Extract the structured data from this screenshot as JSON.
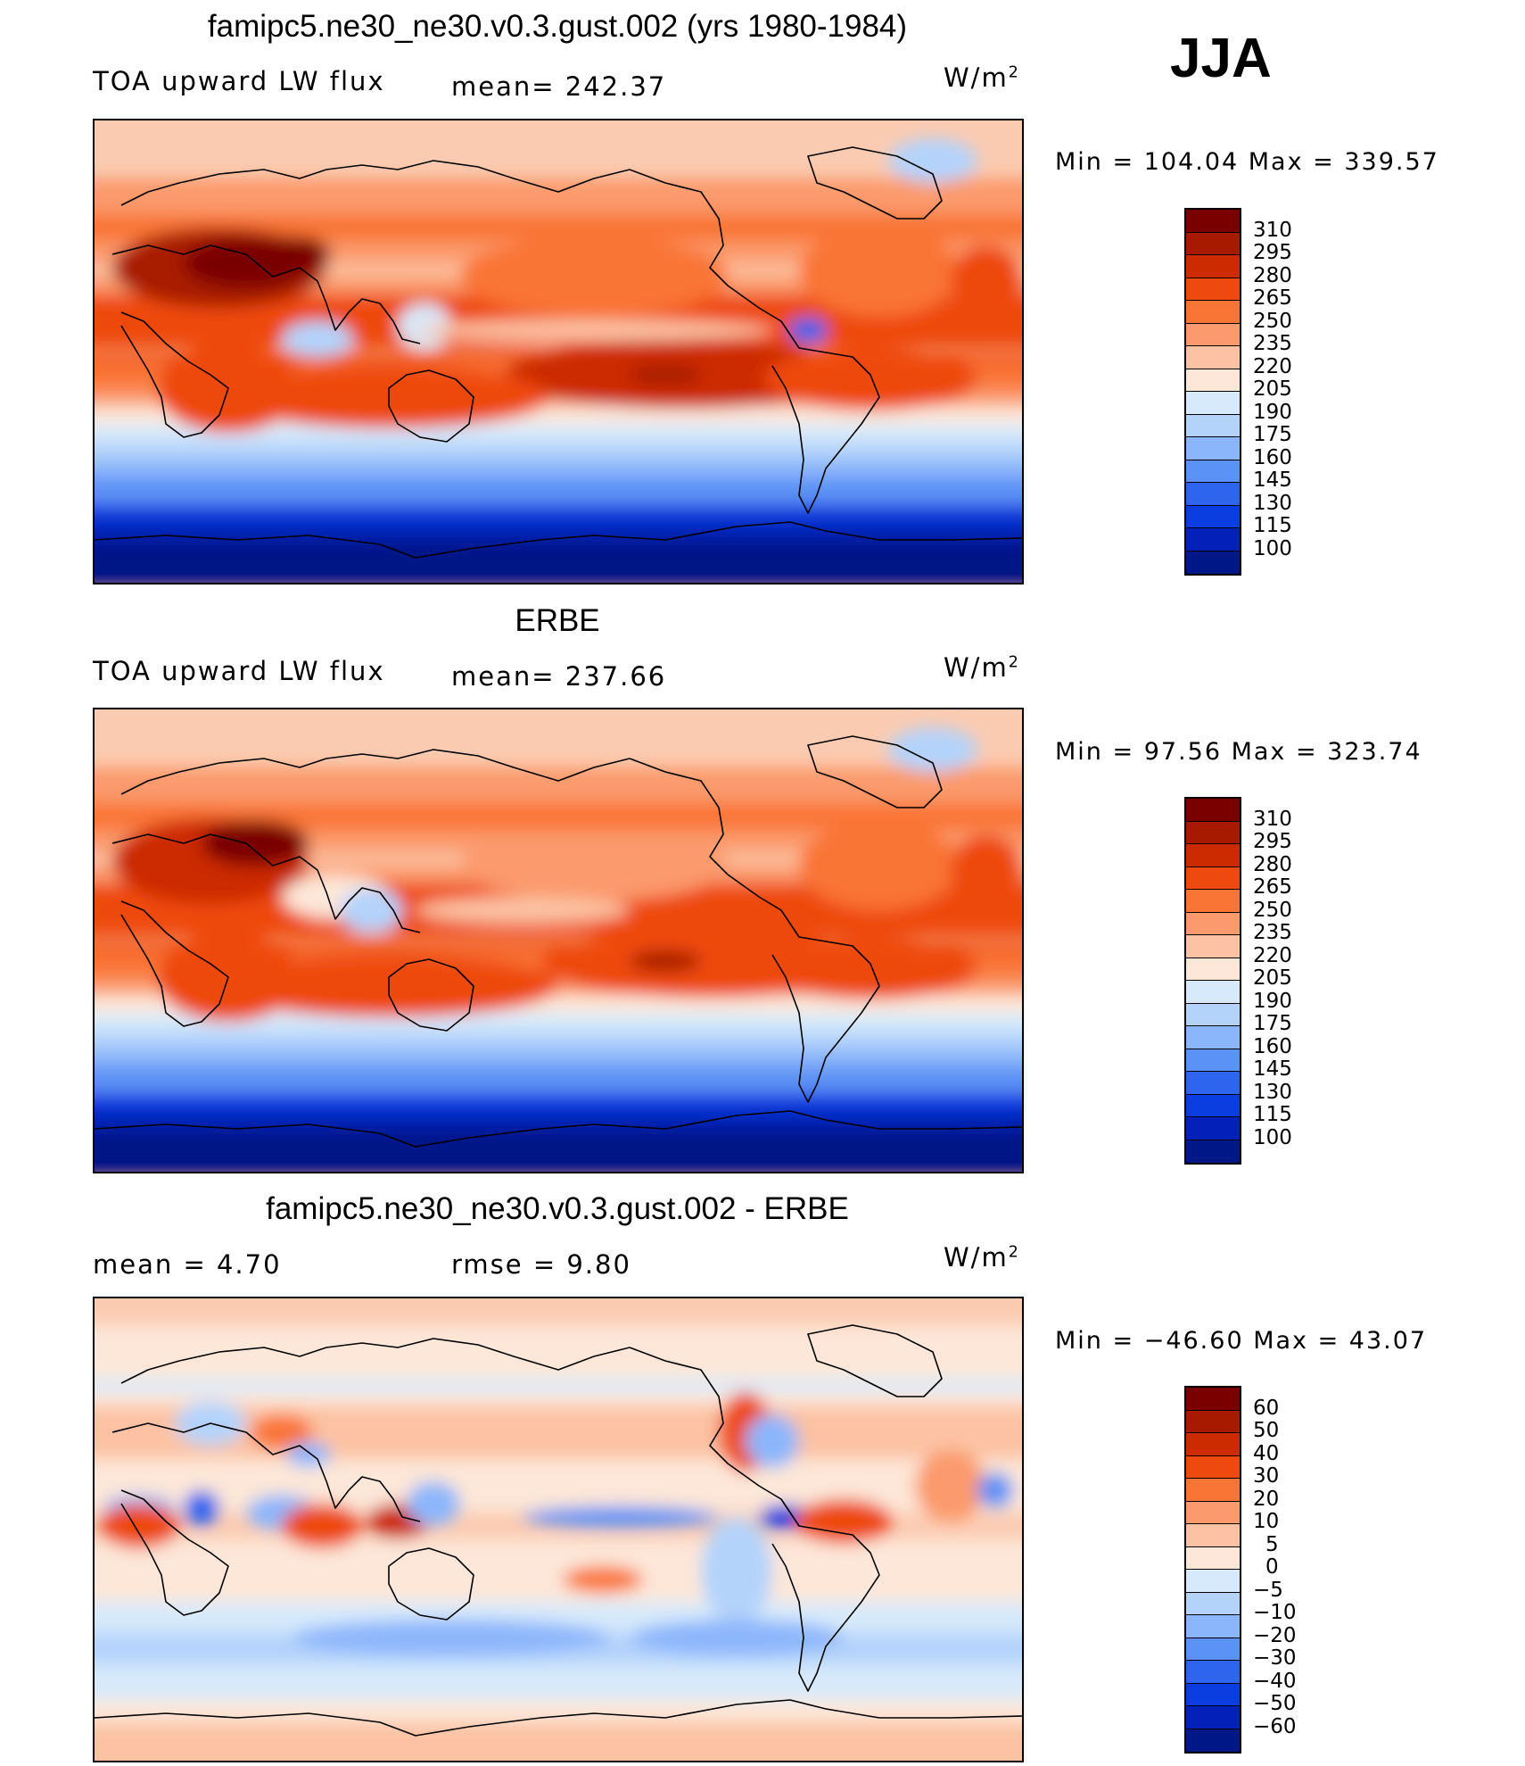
{
  "season": "JJA",
  "panels": [
    {
      "title": "famipc5.ne30_ne30.v0.3.gust.002 (yrs 1980-1984)",
      "left": "TOA upward LW flux",
      "middle": "mean= 242.37",
      "units": "W/m",
      "units_sup": "2",
      "minmax": "Min = 104.04 Max = 339.57",
      "scale": "abs",
      "pattern": "model"
    },
    {
      "title": "ERBE",
      "left": "TOA upward LW flux",
      "middle": "mean= 237.66",
      "units": "W/m",
      "units_sup": "2",
      "minmax": "Min = 97.56 Max = 323.74",
      "scale": "abs",
      "pattern": "obs"
    },
    {
      "title": "famipc5.ne30_ne30.v0.3.gust.002 - ERBE",
      "left": "mean = 4.70",
      "middle": "rmse = 9.80",
      "units": "W/m",
      "units_sup": "2",
      "minmax": "Min = −46.60 Max = 43.07",
      "scale": "diff",
      "pattern": "diff"
    }
  ],
  "colorbars": {
    "abs": {
      "labels": [
        "310",
        "295",
        "280",
        "265",
        "250",
        "235",
        "220",
        "205",
        "190",
        "175",
        "160",
        "145",
        "130",
        "115",
        "100"
      ],
      "colors": [
        "#7a0000",
        "#a81a00",
        "#cc2a00",
        "#ee4a10",
        "#f97535",
        "#fb9a6c",
        "#fcc2a3",
        "#fde7d8",
        "#d7eafb",
        "#b4d3fb",
        "#8cb6fb",
        "#5b92f5",
        "#2e65ef",
        "#0a3ee0",
        "#0320b8",
        "#001787"
      ]
    },
    "diff": {
      "labels": [
        "60",
        "50",
        "40",
        "30",
        "20",
        "10",
        "5",
        "0",
        "−5",
        "−10",
        "−20",
        "−30",
        "−40",
        "−50",
        "−60"
      ],
      "colors": [
        "#7a0000",
        "#a81a00",
        "#cc2a00",
        "#ee4a10",
        "#f97535",
        "#fb9a6c",
        "#fcc2a3",
        "#fde7d8",
        "#d7eafb",
        "#b4d3fb",
        "#8cb6fb",
        "#5b92f5",
        "#2e65ef",
        "#0a3ee0",
        "#0320b8",
        "#001787"
      ]
    }
  }
}
